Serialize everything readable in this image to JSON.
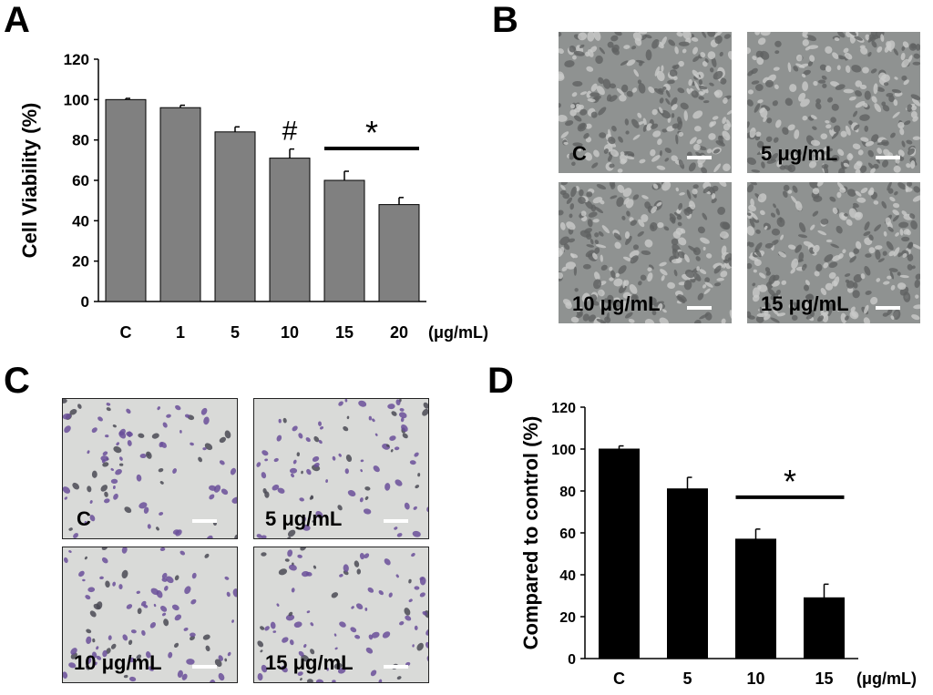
{
  "panels": {
    "a": "A",
    "b": "B",
    "c": "C",
    "d": "D"
  },
  "chart_data": [
    {
      "panel": "A",
      "type": "bar",
      "categories": [
        "C",
        "1",
        "5",
        "10",
        "15",
        "20"
      ],
      "values": [
        100,
        96,
        84,
        71,
        60,
        48
      ],
      "errors": [
        0.6,
        1.2,
        2.5,
        4.5,
        4.5,
        3.5
      ],
      "ylabel": "Cell Viability (%)",
      "xunit": "(μg/mL)",
      "ylim": [
        0,
        120
      ],
      "yticks": [
        "0",
        "20",
        "40",
        "60",
        "80",
        "100",
        "120"
      ],
      "bar_color": "#808080",
      "annotations": [
        {
          "symbol": "#",
          "category": "10"
        },
        {
          "symbol": "*",
          "from": "15",
          "to": "20"
        }
      ]
    },
    {
      "panel": "D",
      "type": "bar",
      "categories": [
        "C",
        "5",
        "10",
        "15"
      ],
      "values": [
        100,
        81,
        57,
        29
      ],
      "errors": [
        1.5,
        5.5,
        4.8,
        6.5
      ],
      "ylabel": "Compared to control (%)",
      "xunit": "(μg/mL)",
      "ylim": [
        0,
        120
      ],
      "yticks": [
        "0",
        "20",
        "40",
        "60",
        "80",
        "100",
        "120"
      ],
      "bar_color": "#000000",
      "annotations": [
        {
          "symbol": "*",
          "from": "10",
          "to": "15"
        }
      ]
    }
  ],
  "micrographs_b": [
    {
      "label": "C"
    },
    {
      "label": "5 μg/mL"
    },
    {
      "label": "10 μg/mL"
    },
    {
      "label": "15 μg/mL"
    }
  ],
  "micrographs_c": [
    {
      "label": "C"
    },
    {
      "label": "5 μg/mL"
    },
    {
      "label": "10 μg/mL"
    },
    {
      "label": "15 μg/mL"
    }
  ],
  "colors": {
    "phase_contrast_bg": "#8f9291",
    "stain_bg": "#d9dad8",
    "stain_cell": "#6a4f9a"
  }
}
